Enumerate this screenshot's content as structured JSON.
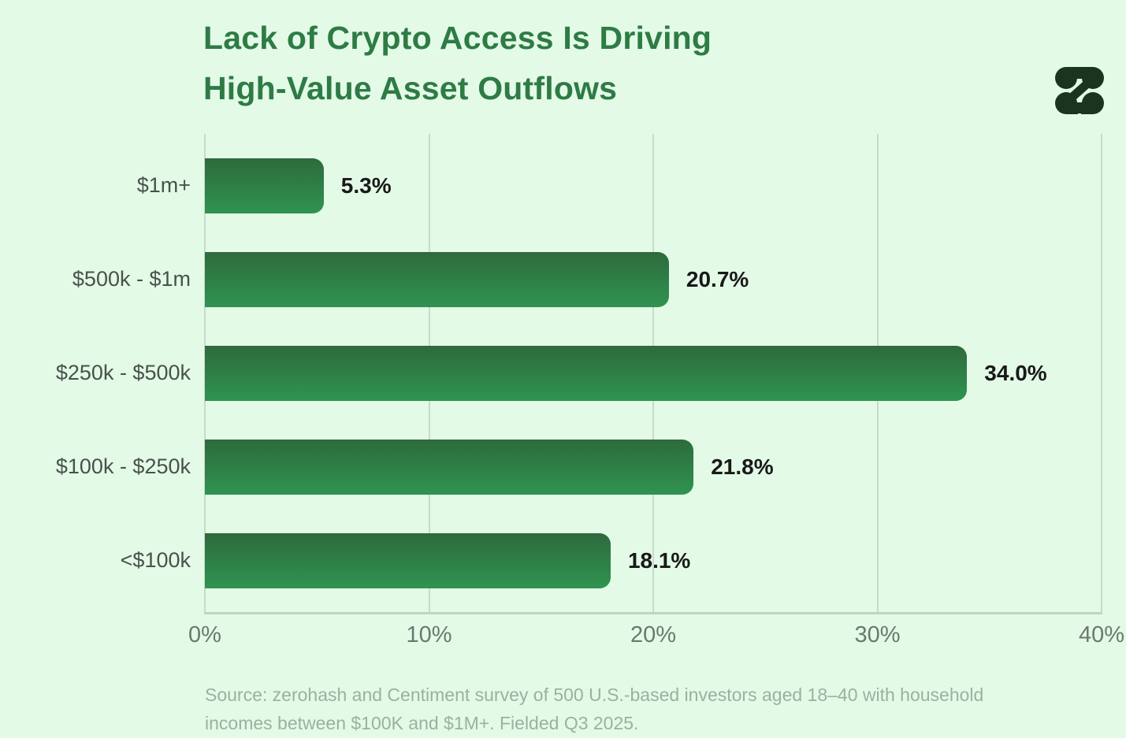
{
  "header": {
    "title_line1": "Lack of Crypto Access Is Driving",
    "title_line2": "High-Value Asset Outflows"
  },
  "chart_data": {
    "type": "bar",
    "orientation": "horizontal",
    "title": "Lack of Crypto Access Is Driving High-Value Asset Outflows",
    "categories": [
      "$1m+",
      "$500k - $1m",
      "$250k - $500k",
      "$100k - $250k",
      "<$100k"
    ],
    "values": [
      5.3,
      20.7,
      34.0,
      21.8,
      18.1
    ],
    "value_labels": [
      "5.3%",
      "20.7%",
      "34.0%",
      "21.8%",
      "18.1%"
    ],
    "xlabel": "",
    "ylabel": "",
    "xlim": [
      0,
      40
    ],
    "x_ticks": [
      0,
      10,
      20,
      30,
      40
    ],
    "x_tick_labels": [
      "0%",
      "10%",
      "20%",
      "30%",
      "40%"
    ],
    "grid": "vertical",
    "legend": "none"
  },
  "footer": {
    "source_line1": "Source: zerohash and Centiment survey of 500 U.S.-based investors aged 18–40 with household",
    "source_line2": "incomes between $100K and $1M+. Fielded Q3 2025."
  },
  "colors": {
    "background": "#e3fae7",
    "title_green": "#2e7b45",
    "bar_gradient_top": "#2e6a3d",
    "bar_gradient_bottom": "#2f9450",
    "gridline": "#c8dbca",
    "axis_line": "#c2d5c4",
    "category_label": "#49524b",
    "value_label": "#191919",
    "tick_label": "#6b796e",
    "source_text": "#9db0a0",
    "logo": "#1a341f"
  }
}
